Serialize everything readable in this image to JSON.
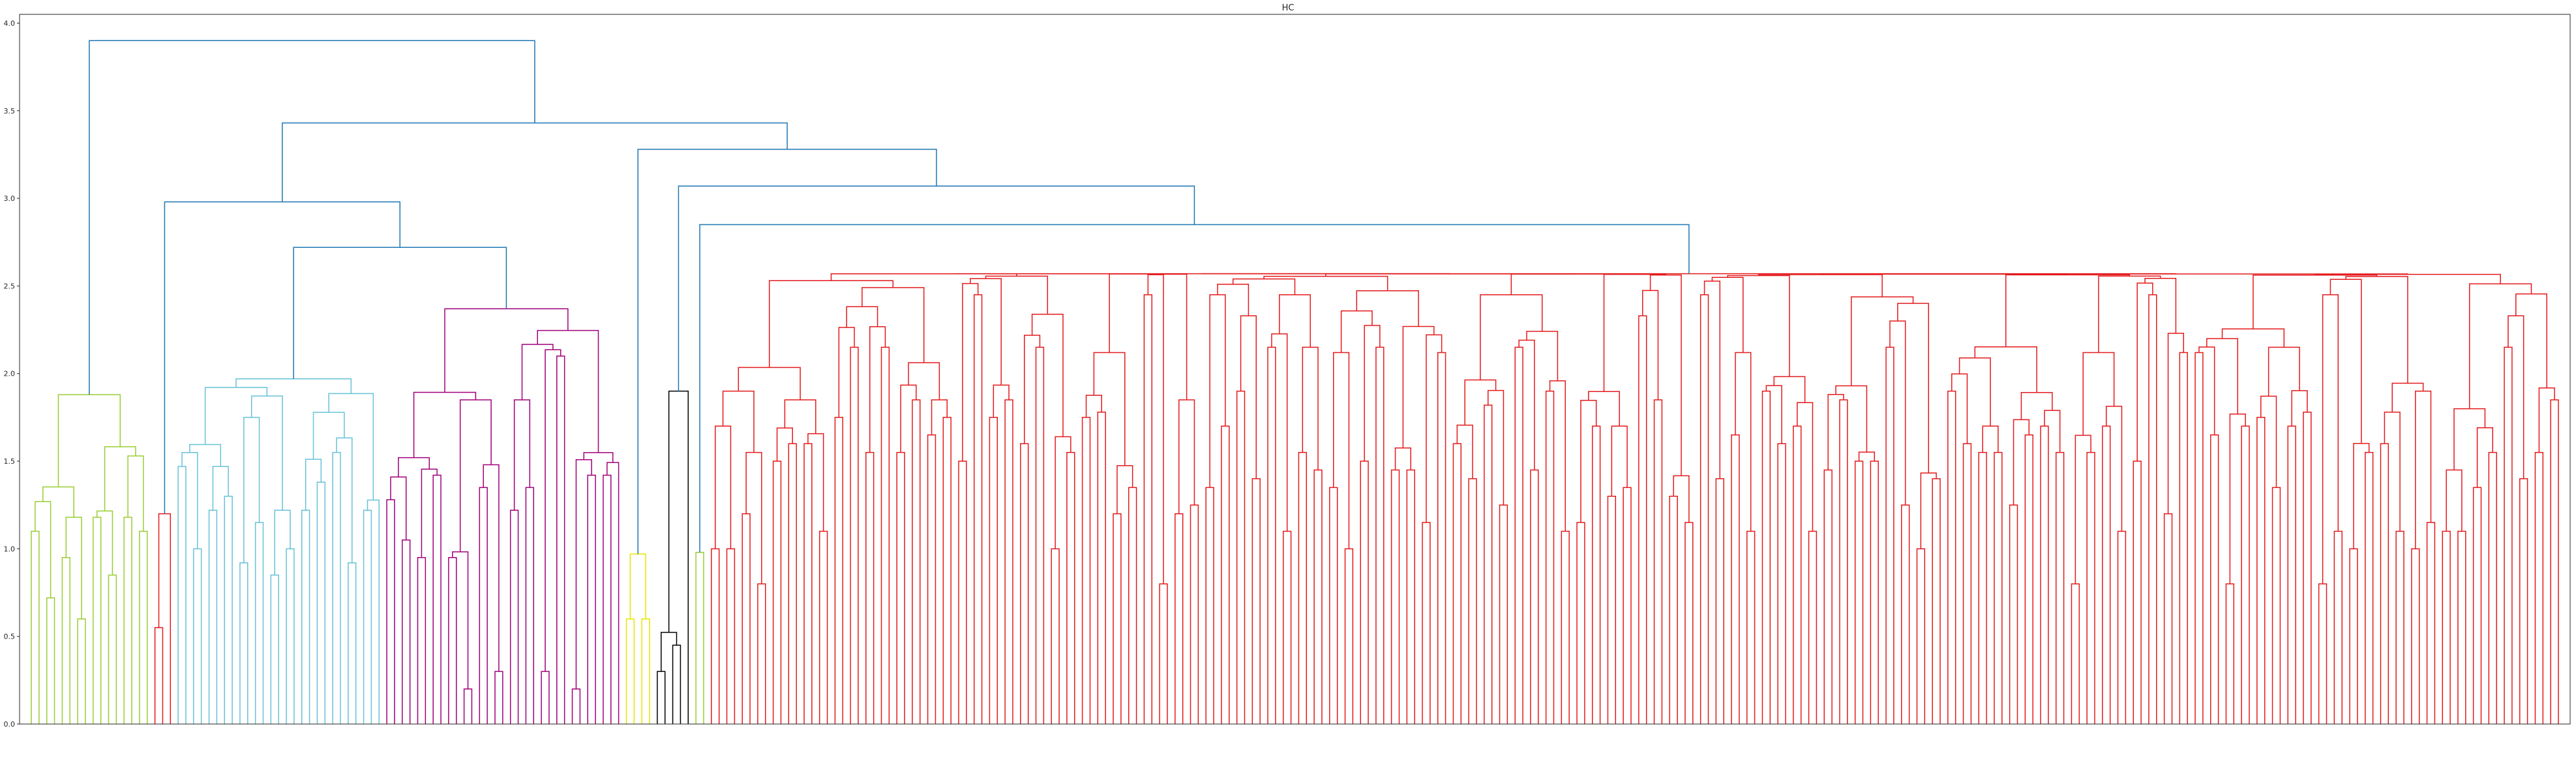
{
  "chart_data": {
    "type": "dendrogram",
    "title": "HC",
    "xlabel": "",
    "ylabel": "",
    "ylim": [
      0,
      4.05
    ],
    "yticks": [
      "0.0",
      "0.5",
      "1.0",
      "1.5",
      "2.0",
      "2.5",
      "3.0",
      "3.5",
      "4.0"
    ],
    "grid": false,
    "above_threshold_color": "#1f77b4",
    "leaf_labels_note": "",
    "clusters": [
      {
        "color": "#9acd32",
        "leaves": 16,
        "root_height": 1.88,
        "member_heights": [
          1.53,
          1.42,
          1.27,
          1.18,
          1.1,
          0.95,
          0.85,
          0.72,
          0.6
        ]
      },
      {
        "color": "#e41a1c",
        "leaves": 3,
        "root_height": 1.2,
        "member_heights": [
          0.55
        ]
      },
      {
        "color": "#66c2d7",
        "leaves": 27,
        "root_height": 1.97,
        "member_heights": [
          1.75,
          1.62,
          1.55,
          1.47,
          1.38,
          1.3,
          1.22,
          1.15,
          1.08,
          1.0,
          0.92,
          0.85
        ]
      },
      {
        "color": "#a0007a",
        "leaves": 31,
        "root_height": 2.37,
        "member_heights": [
          2.33,
          2.1,
          1.85,
          1.45,
          1.42,
          1.35,
          1.28,
          1.22,
          1.15,
          1.05,
          0.95,
          0.6,
          0.3,
          0.2
        ]
      },
      {
        "color": "#e6e600",
        "leaves": 4,
        "root_height": 0.97,
        "member_heights": [
          0.75,
          0.6
        ]
      },
      {
        "color": "#000000",
        "leaves": 5,
        "root_height": 1.9,
        "member_heights": [
          0.78,
          0.45,
          0.3,
          0.15
        ]
      },
      {
        "color": "#9acd32",
        "leaves": 2,
        "root_height": 0.98,
        "member_heights": [
          0.55
        ]
      },
      {
        "color": "#e41a1c",
        "leaves": 240,
        "root_height": 2.57,
        "member_heights": [
          2.45,
          2.33,
          2.15,
          2.12,
          1.9,
          1.85,
          1.82,
          1.78,
          1.75,
          1.7,
          1.65,
          1.6,
          1.55,
          1.5,
          1.45,
          1.4,
          1.35,
          1.3,
          1.25,
          1.2,
          1.15,
          1.1,
          1.0,
          0.8
        ]
      }
    ],
    "upper_links": [
      {
        "color": "#1f77b4",
        "height": 3.9,
        "joins": "cluster 1 with the rest"
      },
      {
        "color": "#1f77b4",
        "height": 3.43,
        "joins": "clusters 2-4 with clusters 5-8"
      },
      {
        "color": "#1f77b4",
        "height": 2.98,
        "joins": "cluster 2 with clusters 3-4"
      },
      {
        "color": "#1f77b4",
        "height": 2.72,
        "joins": "cluster 3 with cluster 4"
      },
      {
        "color": "#1f77b4",
        "height": 3.28,
        "joins": "cluster 5 with clusters 6-8"
      },
      {
        "color": "#1f77b4",
        "height": 3.07,
        "joins": "cluster 6 with clusters 7-8"
      },
      {
        "color": "#1f77b4",
        "height": 2.85,
        "joins": "cluster 7 with cluster 8"
      }
    ]
  }
}
